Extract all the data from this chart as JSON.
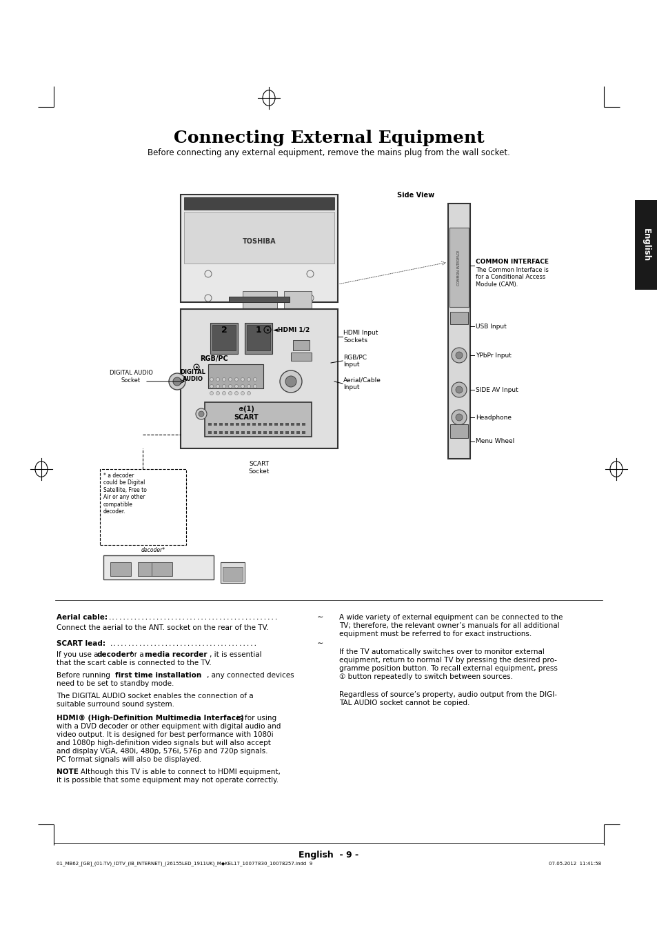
{
  "title": "Connecting External Equipment",
  "subtitle": "Before connecting any external equipment, remove the mains plug from the wall socket.",
  "bg_color": "#ffffff",
  "text_color": "#000000",
  "page_width": 9.54,
  "page_height": 13.51,
  "english_tab_text": "English",
  "footer_text": "01_MB62_[GB]_(01-TV)_IDTV_(IB_INTERNET)_(26155LED_1911UK)_M◆KEL17_10077830_10078257.indd  9",
  "footer_right": "07.05.2012  11:41:58",
  "footer_page": "English  - 9 -",
  "side_view_label": "Side View",
  "common_interface_title": "COMMON INTERFACE",
  "common_interface_text": "The Common Interface is\nfor a Conditional Access\nModule (CAM).",
  "usb_input": "USB Input",
  "ypbpr_input": "YPbPr Input",
  "side_av_input": "SIDE AV Input",
  "headphone": "Headphone",
  "menu_wheel": "Menu Wheel",
  "hdmi_input_sockets": "HDMI Input\nSockets",
  "rgb_pc_input": "RGB/PC\nInput",
  "aerial_cable_input": "Aerial/Cable\nInput",
  "digital_audio_socket_label": "DIGITAL AUDIO\nSocket",
  "scart_socket_label": "SCART\nSocket",
  "decoder_note": "* a decoder\ncould be Digital\nSatellite, Free to\nAir or any other\ncompatible\ndecoder.",
  "decoder_label": "decoder*"
}
